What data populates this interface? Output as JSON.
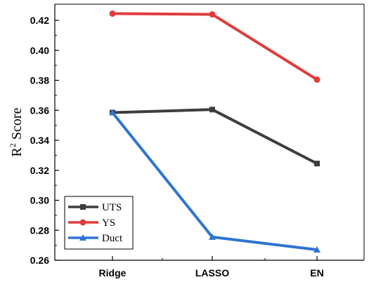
{
  "chart_data": {
    "type": "line",
    "title": "",
    "xlabel": "",
    "ylabel": "R² Score",
    "ylim": [
      0.26,
      0.43
    ],
    "yticks": [
      "0.26",
      "0.28",
      "0.30",
      "0.32",
      "0.34",
      "0.36",
      "0.38",
      "0.40",
      "0.42"
    ],
    "categories": [
      "Ridge",
      "LASSO",
      "EN"
    ],
    "grid": false,
    "legend_position": "bottom-left",
    "series": [
      {
        "name": "UTS",
        "values": [
          0.3585,
          0.3605,
          0.3245
        ],
        "color": "#3d3d3d",
        "marker": "square"
      },
      {
        "name": "YS",
        "values": [
          0.4245,
          0.424,
          0.3805
        ],
        "color": "#e03c3c",
        "marker": "circle"
      },
      {
        "name": "Duct",
        "values": [
          0.3585,
          0.2755,
          0.267
        ],
        "color": "#2f74d0",
        "marker": "triangle"
      }
    ]
  }
}
